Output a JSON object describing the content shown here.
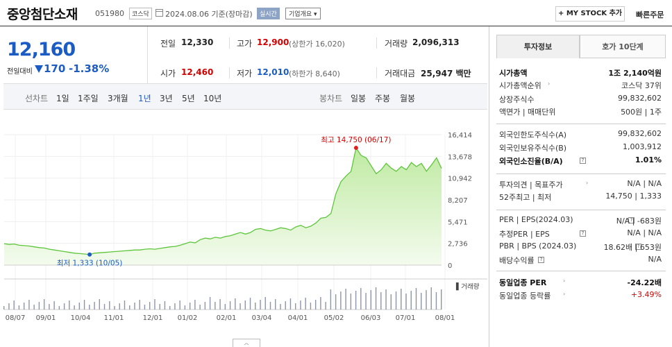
{
  "header": {
    "title": "중앙첨단소재",
    "code": "051980",
    "market": "코스닥",
    "date": "2024.08.06",
    "basis": "기준(장마감)",
    "realtime": "실시간",
    "company_info": "기업개요 ▾",
    "my_stock": "+ MY STOCK 추가",
    "quick_order": "빠른주문"
  },
  "quote": {
    "price": "12,160",
    "vs_prev_label": "전일대비",
    "change": "170",
    "change_pct": "-1.38%",
    "prev_close_label": "전일",
    "prev_close": "12,330",
    "high_label": "고가",
    "high": "12,900",
    "upper_limit": "(상한가 16,020)",
    "volume_label": "거래량",
    "volume": "2,096,313",
    "open_label": "시가",
    "open": "12,460",
    "low_label": "저가",
    "low": "12,010",
    "lower_limit": "(하한가 8,640)",
    "amount_label": "거래대금",
    "amount": "25,947 백만"
  },
  "periods": {
    "line_label": "선차트",
    "line_items": [
      "1일",
      "1주일",
      "3개월",
      "1년",
      "3년",
      "5년",
      "10년"
    ],
    "active": "1년",
    "candle_label": "봉차트",
    "candle_items": [
      "일봉",
      "주봉",
      "월봉"
    ]
  },
  "chart_data": {
    "type": "area",
    "y_ticks": [
      "16,414",
      "13,678",
      "10,942",
      "8,207",
      "5,471",
      "2,736",
      "0"
    ],
    "x_ticks": [
      "08/07",
      "09/01",
      "10/04",
      "11/01",
      "12/01",
      "01/02",
      "02/01",
      "03/04",
      "04/01",
      "05/02",
      "06/03",
      "07/01",
      "08/01"
    ],
    "ylim": [
      0,
      16414
    ],
    "max_label": "최고 14,750 (06/17)",
    "min_label": "최저 1,333 (10/05)",
    "volume_legend": "거래량",
    "series": [
      {
        "values": [
          2700,
          2600,
          2650,
          2500,
          2450,
          2400,
          2300,
          2200,
          2150,
          2000,
          1900,
          1800,
          1700,
          1600,
          1500,
          1450,
          1400,
          1333,
          1500,
          1550,
          1600,
          1650,
          1700,
          1750,
          1800,
          1850,
          1900,
          1900,
          2000,
          2050,
          2000,
          2100,
          2200,
          2300,
          2350,
          2500,
          2700,
          2900,
          2800,
          3200,
          3400,
          3300,
          3500,
          3400,
          3600,
          3700,
          3900,
          4100,
          3900,
          4100,
          4500,
          4600,
          4400,
          4300,
          4500,
          4700,
          4600,
          4400,
          4800,
          5000,
          4700,
          4900,
          5300,
          5900,
          6000,
          6500,
          9000,
          10500,
          11200,
          11800,
          14750,
          13800,
          13500,
          12500,
          11500,
          12000,
          12800,
          12200,
          11800,
          12400,
          12000,
          12900,
          12400,
          12800,
          11800,
          12600,
          13500,
          12160
        ]
      }
    ]
  },
  "side": {
    "tabs": [
      "투자정보",
      "호가 10단계"
    ],
    "rows": [
      {
        "l": "시가총액",
        "r": "1조 2,140억원",
        "bold": true
      },
      {
        "l": "시가총액순위",
        "r": "코스닥 37위",
        "arrow": true
      },
      {
        "l": "상장주식수",
        "r": "99,832,602"
      },
      {
        "l": "액면가 | 매매단위",
        "r": "500원 | 1주"
      },
      {
        "l": "외국인한도주식수(A)",
        "r": "99,832,602"
      },
      {
        "l": "외국인보유주식수(B)",
        "r": "1,003,912"
      },
      {
        "l": "외국인소진율(B/A)",
        "r": "1.01%",
        "bold": true,
        "q": true
      },
      {
        "l": "투자의견 | 목표주가",
        "r": "N/A | N/A",
        "arrow": true
      },
      {
        "l": "52주최고 | 최저",
        "r": "14,750 | 1,333"
      },
      {
        "l": "PER | EPS(2024.03)",
        "r": "N/A | -683원",
        "q": true
      },
      {
        "l": "추정PER | EPS",
        "r": "N/A | N/A",
        "q": true
      },
      {
        "l": "PBR | BPS (2024.03)",
        "r": "18.62배 | 653원",
        "q": true
      },
      {
        "l": "배당수익률",
        "r": "N/A",
        "q": true
      },
      {
        "l": "동일업종 PER",
        "r": "-24.22배",
        "bold": true,
        "arrow": true
      },
      {
        "l": "동일업종 등락률",
        "r": "+3.49%",
        "arrow": true,
        "red": true
      }
    ]
  }
}
